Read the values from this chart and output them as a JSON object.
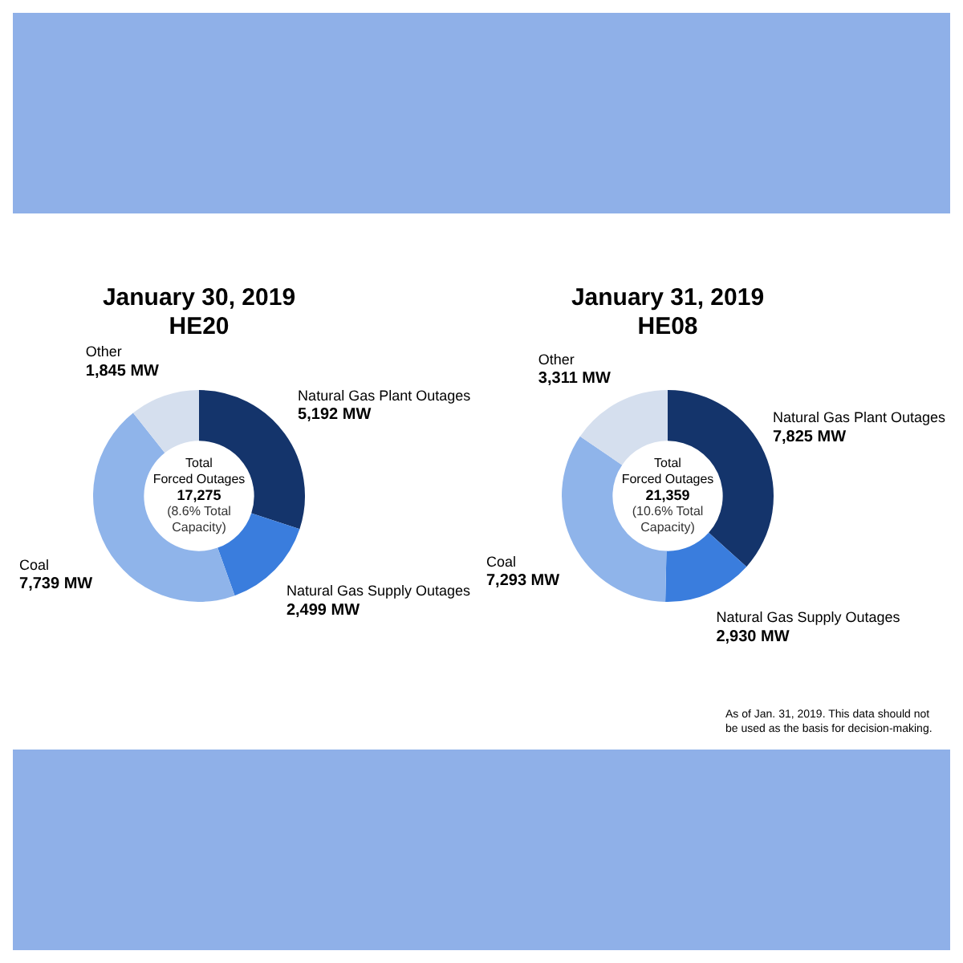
{
  "chart_data": [
    {
      "type": "donut",
      "title": "January 30, 2019",
      "subtitle": "HE20",
      "categories": [
        "Natural Gas Plant Outages",
        "Natural Gas Supply Outages",
        "Coal",
        "Other"
      ],
      "values": [
        5192,
        2499,
        7739,
        1845
      ],
      "value_labels": [
        "5,192 MW",
        "2,499 MW",
        "7,739 MW",
        "1,845 MW"
      ],
      "colors": [
        "#14346b",
        "#3a7ddd",
        "#8fb4ea",
        "#d5dfee"
      ],
      "legend": false,
      "annotations": [
        "Total",
        "Forced Outages",
        "17,275",
        "(8.6% Total",
        "Capacity)"
      ]
    },
    {
      "type": "donut",
      "title": "January 31, 2019",
      "subtitle": "HE08",
      "categories": [
        "Natural Gas Plant Outages",
        "Natural Gas Supply Outages",
        "Coal",
        "Other"
      ],
      "values": [
        7825,
        2930,
        7293,
        3311
      ],
      "value_labels": [
        "7,825 MW",
        "2,930 MW",
        "7,293 MW",
        "3,311 MW"
      ],
      "colors": [
        "#14346b",
        "#3a7ddd",
        "#8fb4ea",
        "#d5dfee"
      ],
      "legend": false,
      "annotations": [
        "Total",
        "Forced Outages",
        "21,359",
        "(10.6% Total",
        "Capacity)",
        "As of Jan. 31, 2019.  This data should not be used as the basis for decision-making."
      ]
    }
  ]
}
